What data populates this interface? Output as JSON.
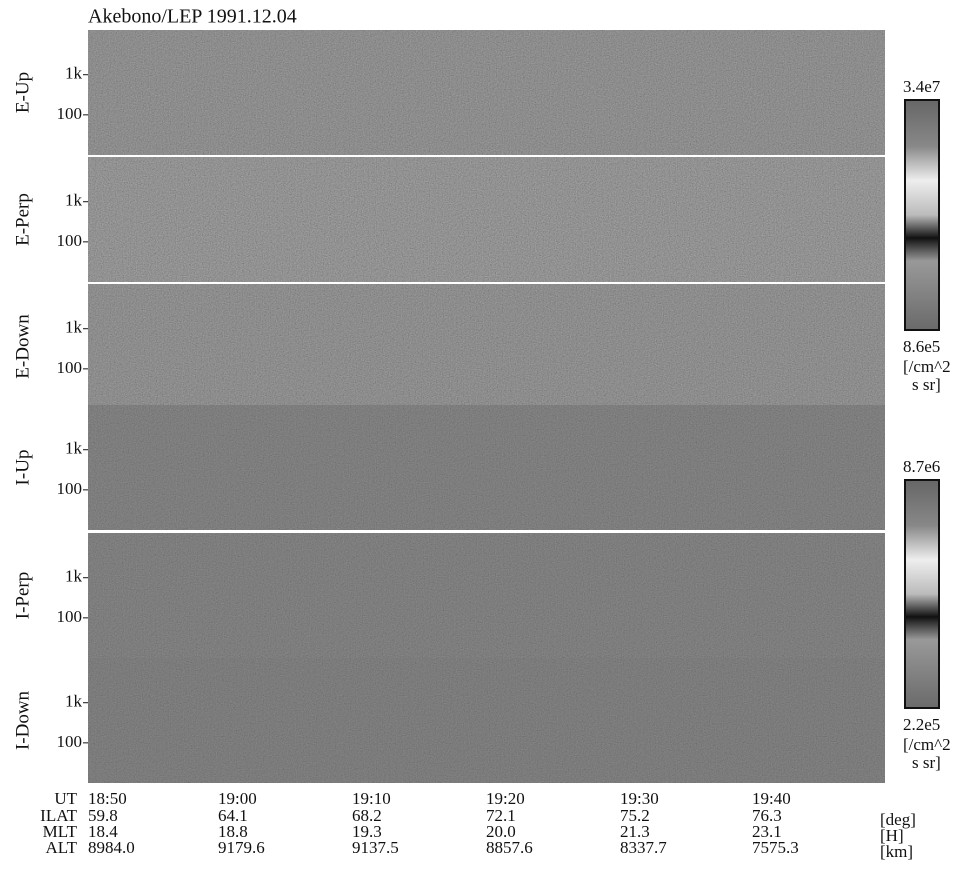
{
  "chart_data": {
    "type": "spectrogram",
    "title": "Akebono/LEP 1991.12.04",
    "log_y": true,
    "ylim": [
      10,
      13000
    ],
    "yticks": [
      {
        "value": 1000,
        "label": "1k"
      },
      100
    ],
    "panels": [
      "E-Up",
      "E-Perp",
      "E-Down",
      "I-Up",
      "I-Perp",
      "I-Down"
    ],
    "colorbars": [
      {
        "max": {
          "value": 34000000,
          "label": "3.4e7"
        },
        "min": {
          "value": 860000,
          "label": "8.6e5"
        },
        "unit": [
          "[/cm^2",
          "s sr]"
        ]
      },
      {
        "max": {
          "value": 8700000,
          "label": "8.7e6"
        },
        "min": {
          "value": 220000,
          "label": "2.2e5"
        },
        "unit": [
          "[/cm^2",
          "s sr]"
        ]
      }
    ],
    "time_table": [
      {
        "name": "UT",
        "values": [
          "18:50",
          "19:00",
          "19:10",
          "19:20",
          "19:30",
          "19:40"
        ]
      },
      {
        "name": "ILAT",
        "values": [
          "59.8",
          "64.1",
          "68.2",
          "72.1",
          "75.2",
          "76.3"
        ],
        "unit": "[deg]"
      },
      {
        "name": "MLT",
        "values": [
          "18.4",
          "18.8",
          "19.3",
          "20.0",
          "21.3",
          "23.1"
        ],
        "unit": "[H]"
      },
      {
        "name": "ALT",
        "values": [
          "8984.0",
          "9179.6",
          "9137.5",
          "8857.6",
          "8337.7",
          "7575.3"
        ],
        "unit": "[km]"
      }
    ]
  }
}
